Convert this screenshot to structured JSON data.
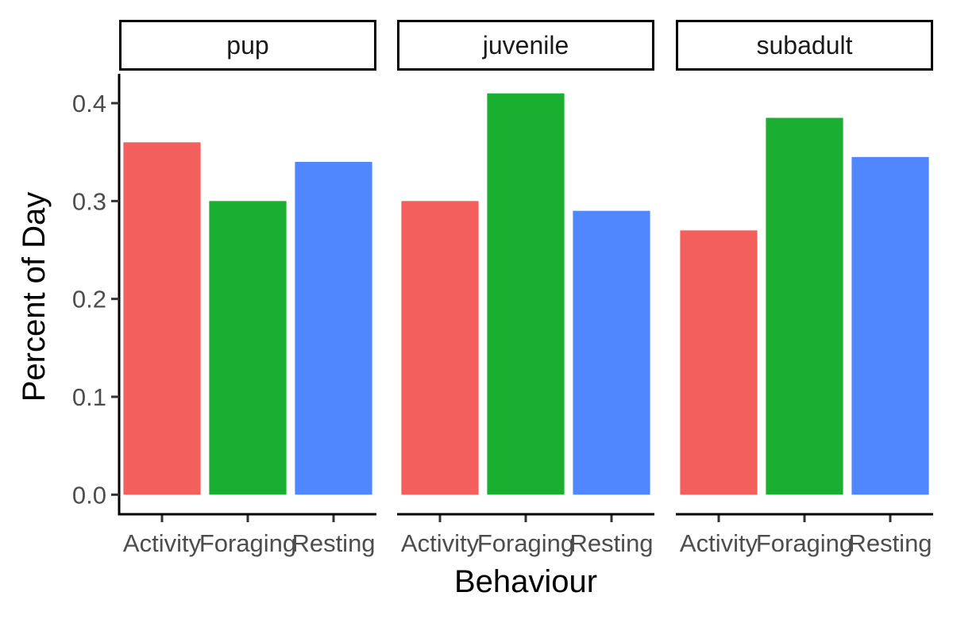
{
  "chart_data": {
    "type": "bar",
    "facets": [
      "pup",
      "juvenile",
      "subadult"
    ],
    "categories": [
      "Activity",
      "Foraging",
      "Resting"
    ],
    "colors": [
      "#F25F5C",
      "#1AAF30",
      "#5087FF"
    ],
    "series": [
      {
        "facet": "pup",
        "values": [
          0.36,
          0.3,
          0.34
        ]
      },
      {
        "facet": "juvenile",
        "values": [
          0.3,
          0.41,
          0.29
        ]
      },
      {
        "facet": "subadult",
        "values": [
          0.27,
          0.385,
          0.345
        ]
      }
    ],
    "xlabel": "Behaviour",
    "ylabel": "Percent of Day",
    "yticks": [
      "0.0",
      "0.1",
      "0.2",
      "0.3",
      "0.4"
    ],
    "ylim": [
      -0.02,
      0.43
    ],
    "grid": false,
    "legend": "none"
  }
}
